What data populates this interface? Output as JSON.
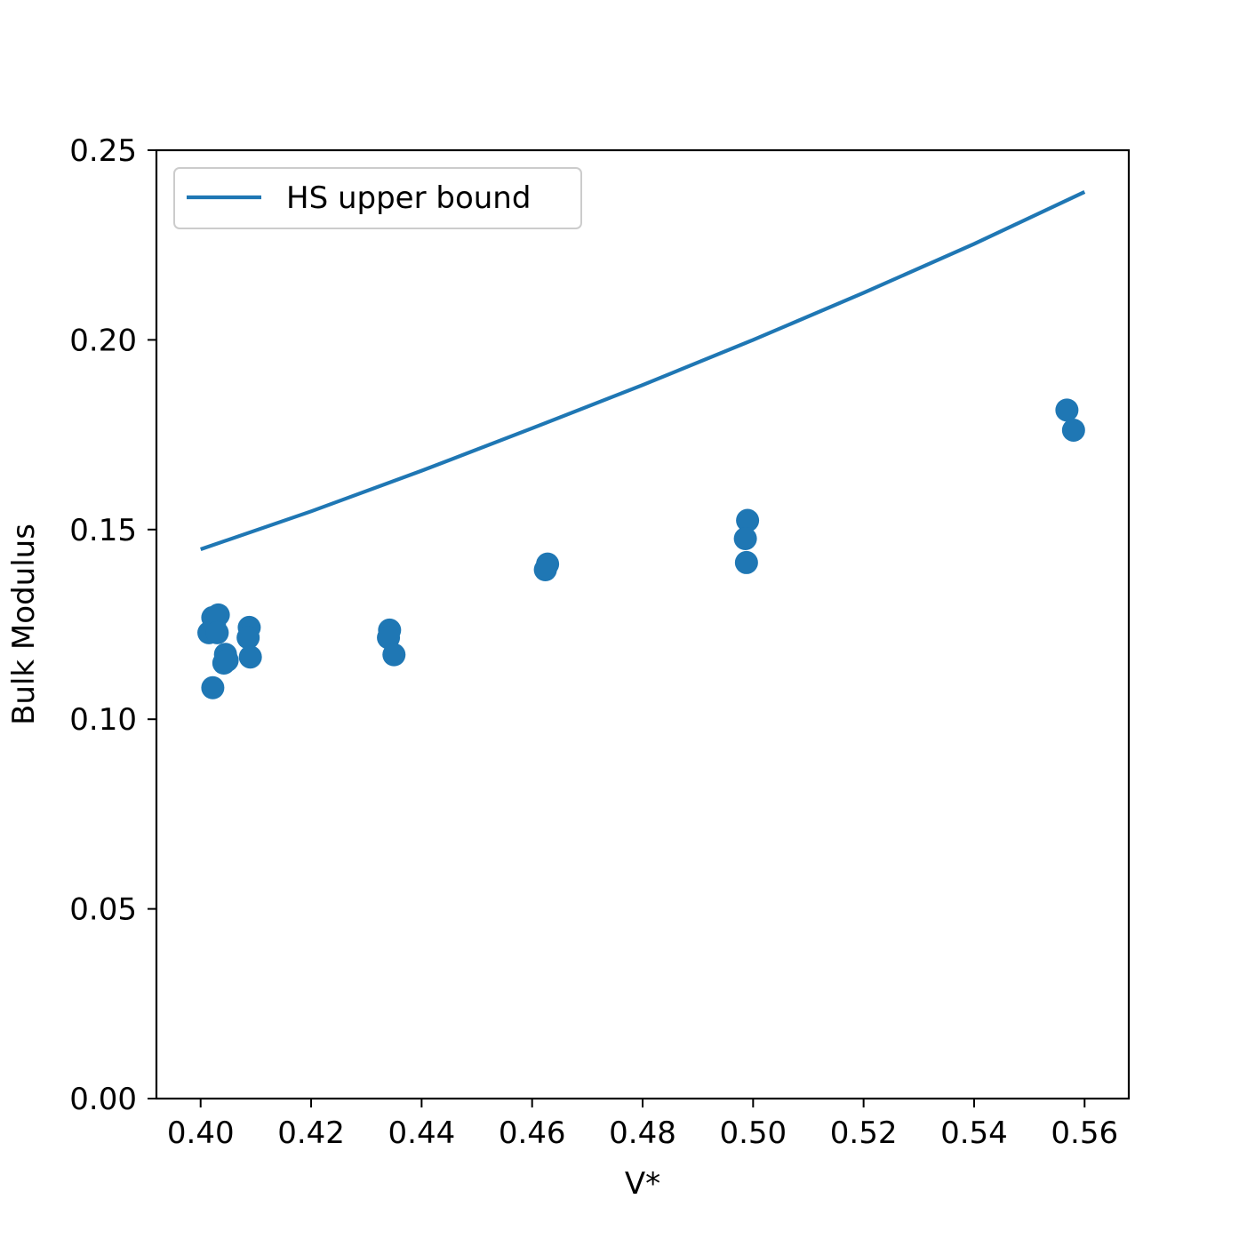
{
  "chart_data": {
    "type": "scatter",
    "xlabel": "V*",
    "ylabel": "Bulk Modulus",
    "xlim": [
      0.392,
      0.568
    ],
    "ylim": [
      0.0,
      0.25
    ],
    "xticks": [
      "0.40",
      "0.42",
      "0.44",
      "0.46",
      "0.48",
      "0.50",
      "0.52",
      "0.54",
      "0.56"
    ],
    "yticks": [
      "0.00",
      "0.05",
      "0.10",
      "0.15",
      "0.20",
      "0.25"
    ],
    "grid": false,
    "legend_position": "top-left",
    "color": "#1f77b4",
    "series": [
      {
        "name": "HS upper bound",
        "kind": "line",
        "x": [
          0.4,
          0.42,
          0.44,
          0.46,
          0.48,
          0.5,
          0.52,
          0.54,
          0.56
        ],
        "y": [
          0.1448,
          0.1548,
          0.1655,
          0.1767,
          0.1881,
          0.2,
          0.2124,
          0.2253,
          0.239
        ]
      },
      {
        "kind": "scatter",
        "x": [
          0.4015,
          0.4022,
          0.4025,
          0.4032,
          0.403,
          0.4022,
          0.4045,
          0.4042,
          0.4048,
          0.4088,
          0.4086,
          0.409,
          0.4342,
          0.434,
          0.435,
          0.4628,
          0.4624,
          0.499,
          0.4986,
          0.4988,
          0.5568,
          0.558
        ],
        "y": [
          0.1228,
          0.1268,
          0.1248,
          0.1275,
          0.1228,
          0.1083,
          0.1171,
          0.1148,
          0.1155,
          0.1242,
          0.1215,
          0.1164,
          0.1235,
          0.1215,
          0.117,
          0.1409,
          0.1394,
          0.1524,
          0.1476,
          0.1413,
          0.1815,
          0.1762
        ]
      }
    ]
  }
}
